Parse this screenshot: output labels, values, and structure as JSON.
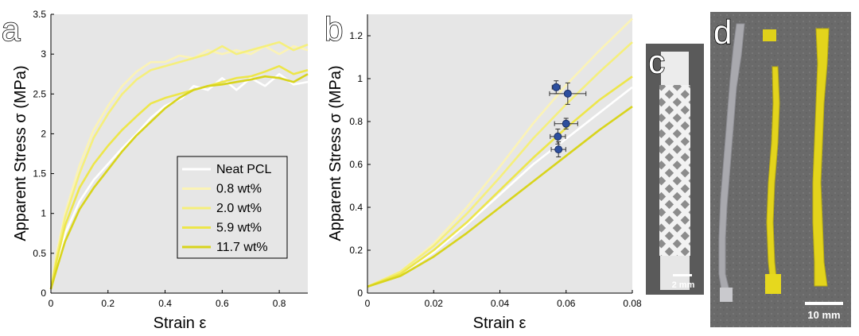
{
  "panels": {
    "a": "a",
    "b": "b",
    "c": "c",
    "d": "d"
  },
  "photos": {
    "c_scale_bar": "2 mm",
    "d_scale_bar": "10 mm"
  },
  "colors": {
    "plot_background": "#e6e6e6",
    "Neat PCL": "#ffffff",
    "0.8 wt%": "#fbf3b6",
    "2.0 wt%": "#f5ef7c",
    "5.9 wt%": "#ede64a",
    "11.7 wt%": "#d8d41c",
    "marker_fill": "#2d4f9e"
  },
  "chart_data": [
    {
      "type": "line",
      "panel": "a",
      "xlabel": "Strain ε",
      "ylabel": "Apparent Stress σ (MPa)",
      "xlim": [
        0,
        0.9
      ],
      "ylim": [
        0,
        3.5
      ],
      "xticks": [
        0,
        0.2,
        0.4,
        0.6,
        0.8
      ],
      "xtick_labels": [
        "0",
        "0.2",
        "0.4",
        "0.6",
        "0.8"
      ],
      "yticks": [
        0,
        0.5,
        1,
        1.5,
        2,
        2.5,
        3,
        3.5
      ],
      "ytick_labels": [
        "0",
        "0.5",
        "1",
        "1.5",
        "2",
        "2.5",
        "3",
        "3.5"
      ],
      "grid": false,
      "legend": "center-right",
      "series": [
        {
          "name": "Neat PCL",
          "x": [
            0,
            0.02,
            0.05,
            0.1,
            0.15,
            0.2,
            0.25,
            0.3,
            0.35,
            0.4,
            0.43,
            0.46,
            0.5,
            0.55,
            0.6,
            0.65,
            0.7,
            0.75,
            0.8,
            0.85,
            0.9
          ],
          "y": [
            0.05,
            0.35,
            0.75,
            1.15,
            1.42,
            1.62,
            1.82,
            2.0,
            2.2,
            2.35,
            2.4,
            2.45,
            2.6,
            2.55,
            2.7,
            2.55,
            2.7,
            2.6,
            2.75,
            2.62,
            2.65
          ]
        },
        {
          "name": "0.8 wt%",
          "x": [
            0,
            0.02,
            0.05,
            0.1,
            0.15,
            0.2,
            0.25,
            0.3,
            0.35,
            0.4,
            0.45,
            0.5,
            0.55,
            0.6,
            0.65,
            0.7,
            0.75,
            0.8,
            0.85,
            0.9
          ],
          "y": [
            0.05,
            0.5,
            1.0,
            1.6,
            2.05,
            2.35,
            2.6,
            2.78,
            2.9,
            2.9,
            2.98,
            2.95,
            3.05,
            3.0,
            3.05,
            3.0,
            3.1,
            3.0,
            3.1,
            3.05
          ]
        },
        {
          "name": "2.0 wt%",
          "x": [
            0,
            0.02,
            0.05,
            0.1,
            0.15,
            0.2,
            0.25,
            0.3,
            0.35,
            0.4,
            0.45,
            0.5,
            0.55,
            0.6,
            0.65,
            0.7,
            0.75,
            0.8,
            0.85,
            0.9
          ],
          "y": [
            0.05,
            0.45,
            0.95,
            1.5,
            1.95,
            2.25,
            2.5,
            2.68,
            2.8,
            2.85,
            2.9,
            2.95,
            3.0,
            3.1,
            3.0,
            3.05,
            3.1,
            3.15,
            3.05,
            3.12
          ]
        },
        {
          "name": "5.9 wt%",
          "x": [
            0,
            0.02,
            0.05,
            0.1,
            0.15,
            0.2,
            0.25,
            0.3,
            0.35,
            0.4,
            0.45,
            0.5,
            0.55,
            0.6,
            0.65,
            0.7,
            0.75,
            0.8,
            0.85,
            0.9
          ],
          "y": [
            0.05,
            0.4,
            0.85,
            1.32,
            1.62,
            1.85,
            2.05,
            2.22,
            2.38,
            2.45,
            2.5,
            2.55,
            2.6,
            2.65,
            2.7,
            2.72,
            2.78,
            2.85,
            2.75,
            2.8
          ]
        },
        {
          "name": "11.7 wt%",
          "x": [
            0,
            0.02,
            0.05,
            0.1,
            0.15,
            0.2,
            0.25,
            0.3,
            0.35,
            0.4,
            0.45,
            0.5,
            0.55,
            0.6,
            0.65,
            0.7,
            0.75,
            0.8,
            0.85,
            0.9
          ],
          "y": [
            0.05,
            0.3,
            0.65,
            1.05,
            1.32,
            1.55,
            1.78,
            1.98,
            2.15,
            2.32,
            2.45,
            2.55,
            2.6,
            2.62,
            2.65,
            2.68,
            2.72,
            2.7,
            2.65,
            2.75
          ]
        }
      ]
    },
    {
      "type": "line",
      "panel": "b",
      "xlabel": "Strain ε",
      "ylabel": "Apparent Stress σ (MPa)",
      "xlim": [
        0,
        0.08
      ],
      "ylim": [
        0,
        1.3
      ],
      "xticks": [
        0,
        0.02,
        0.04,
        0.06,
        0.08
      ],
      "xtick_labels": [
        "0",
        "0.02",
        "0.04",
        "0.06",
        "0.08"
      ],
      "yticks": [
        0,
        0.2,
        0.4,
        0.6,
        0.8,
        1,
        1.2
      ],
      "ytick_labels": [
        "0",
        "0.2",
        "0.4",
        "0.6",
        "0.8",
        "1",
        "1.2"
      ],
      "grid": false,
      "series": [
        {
          "name": "Neat PCL",
          "x": [
            0,
            0.01,
            0.02,
            0.03,
            0.04,
            0.05,
            0.06,
            0.07,
            0.08
          ],
          "y": [
            0.03,
            0.09,
            0.19,
            0.32,
            0.46,
            0.6,
            0.72,
            0.84,
            0.96
          ]
        },
        {
          "name": "0.8 wt%",
          "x": [
            0,
            0.01,
            0.02,
            0.03,
            0.04,
            0.05,
            0.06,
            0.07,
            0.08
          ],
          "y": [
            0.03,
            0.1,
            0.23,
            0.4,
            0.59,
            0.79,
            0.97,
            1.13,
            1.28
          ]
        },
        {
          "name": "2.0 wt%",
          "x": [
            0,
            0.01,
            0.02,
            0.03,
            0.04,
            0.05,
            0.06,
            0.07,
            0.08
          ],
          "y": [
            0.03,
            0.1,
            0.22,
            0.37,
            0.54,
            0.72,
            0.88,
            1.03,
            1.17
          ]
        },
        {
          "name": "5.9 wt%",
          "x": [
            0,
            0.01,
            0.02,
            0.03,
            0.04,
            0.05,
            0.06,
            0.07,
            0.08
          ],
          "y": [
            0.03,
            0.09,
            0.2,
            0.33,
            0.48,
            0.63,
            0.77,
            0.9,
            1.01
          ]
        },
        {
          "name": "11.7 wt%",
          "x": [
            0,
            0.01,
            0.02,
            0.03,
            0.04,
            0.05,
            0.06,
            0.07,
            0.08
          ],
          "y": [
            0.03,
            0.08,
            0.17,
            0.28,
            0.4,
            0.52,
            0.64,
            0.76,
            0.87
          ]
        }
      ],
      "points": [
        {
          "series": "Neat PCL",
          "x": 0.0575,
          "y": 0.73,
          "xerr": 0.0023,
          "yerr": 0.035
        },
        {
          "series": "0.8 wt%",
          "x": 0.057,
          "y": 0.96,
          "xerr": 0.0012,
          "yerr": 0.03
        },
        {
          "series": "2.0 wt%",
          "x": 0.0605,
          "y": 0.93,
          "xerr": 0.0055,
          "yerr": 0.05
        },
        {
          "series": "5.9 wt%",
          "x": 0.06,
          "y": 0.79,
          "xerr": 0.0035,
          "yerr": 0.025
        },
        {
          "series": "11.7 wt%",
          "x": 0.0577,
          "y": 0.67,
          "xerr": 0.0022,
          "yerr": 0.035
        }
      ]
    }
  ]
}
